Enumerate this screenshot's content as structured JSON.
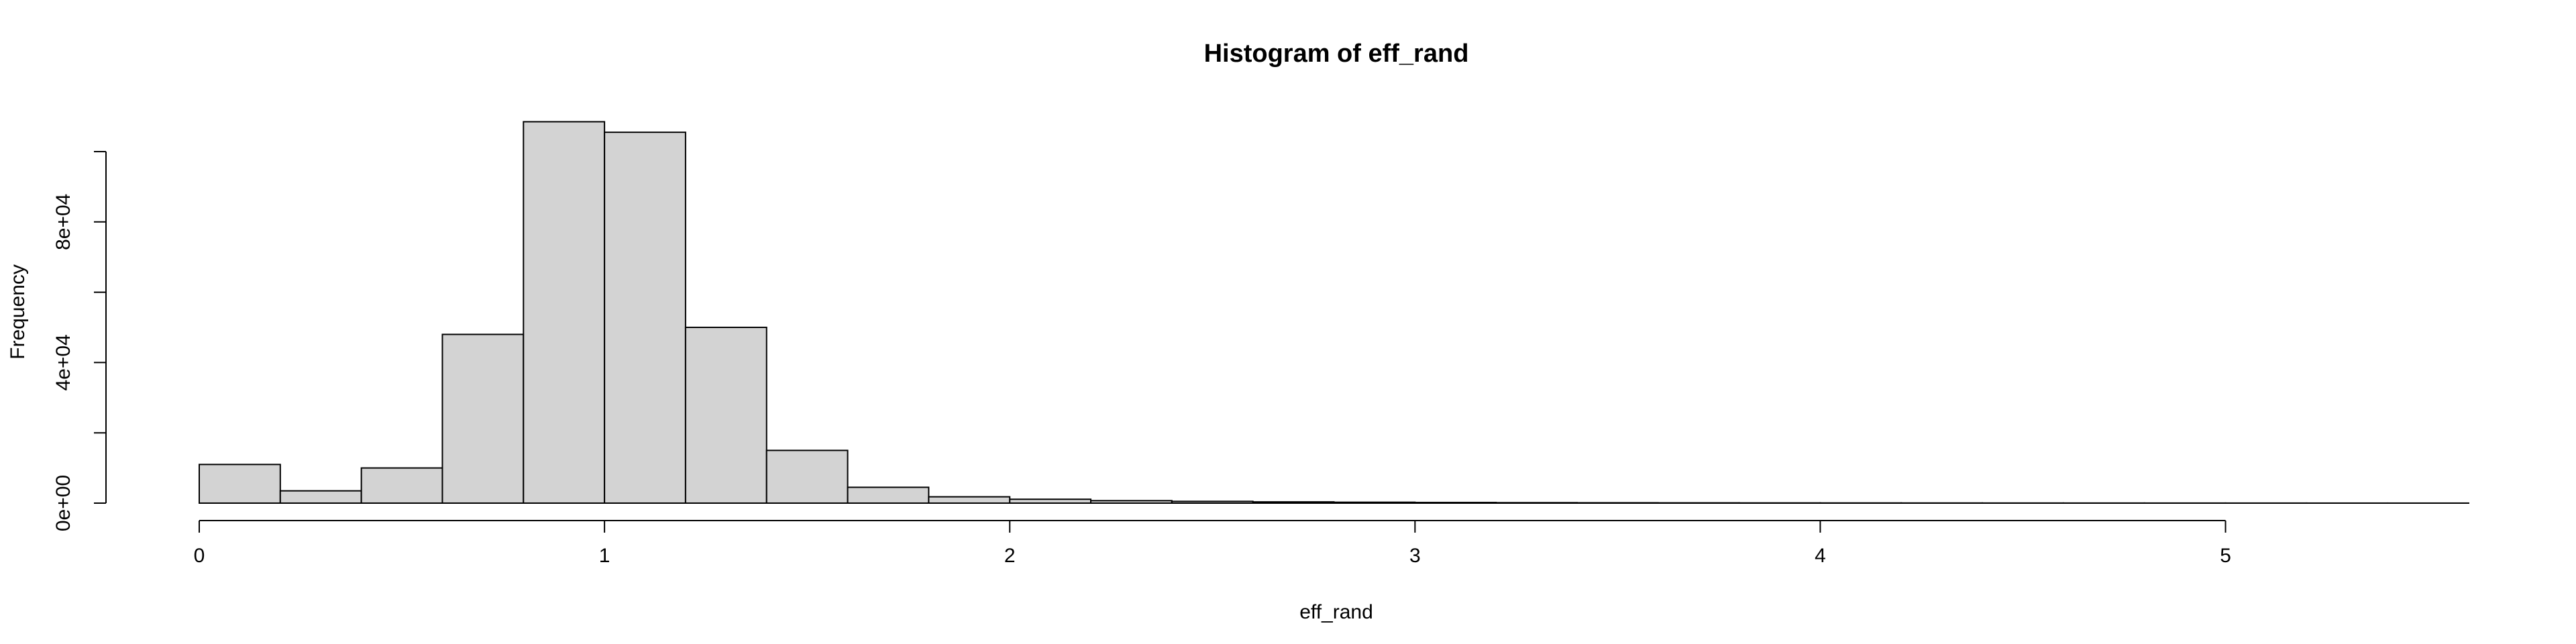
{
  "chart_data": {
    "type": "bar",
    "title": "Histogram of eff_rand",
    "xlabel": "eff_rand",
    "ylabel": "Frequency",
    "bar_color": "#d3d3d3",
    "border_color": "#000000",
    "bin_width": 0.2,
    "bin_starts": [
      0,
      0.2,
      0.4,
      0.6,
      0.8,
      1.0,
      1.2,
      1.4,
      1.6,
      1.8,
      2.0,
      2.2,
      2.4,
      2.6,
      2.8,
      3.0,
      3.2,
      3.4,
      3.6,
      3.8,
      4.0,
      4.2,
      4.4,
      4.6,
      4.8,
      5.0,
      5.2,
      5.4
    ],
    "values": [
      11000,
      3500,
      10000,
      48000,
      108500,
      105500,
      50000,
      15000,
      4500,
      1800,
      1100,
      700,
      500,
      350,
      250,
      180,
      130,
      100,
      80,
      60,
      50,
      40,
      30,
      25,
      20,
      15,
      10,
      8
    ],
    "xlim": [
      0,
      5.6
    ],
    "ylim": [
      0,
      100000
    ],
    "x_ticks": [
      0,
      1,
      2,
      3,
      4,
      5
    ],
    "x_tick_labels": [
      "0",
      "1",
      "2",
      "3",
      "4",
      "5"
    ],
    "y_ticks": [
      0,
      20000,
      40000,
      60000,
      80000,
      100000
    ],
    "y_tick_labels": [
      "0e+00",
      "",
      "4e+04",
      "",
      "8e+04",
      ""
    ],
    "grid": false,
    "legend": "none"
  }
}
